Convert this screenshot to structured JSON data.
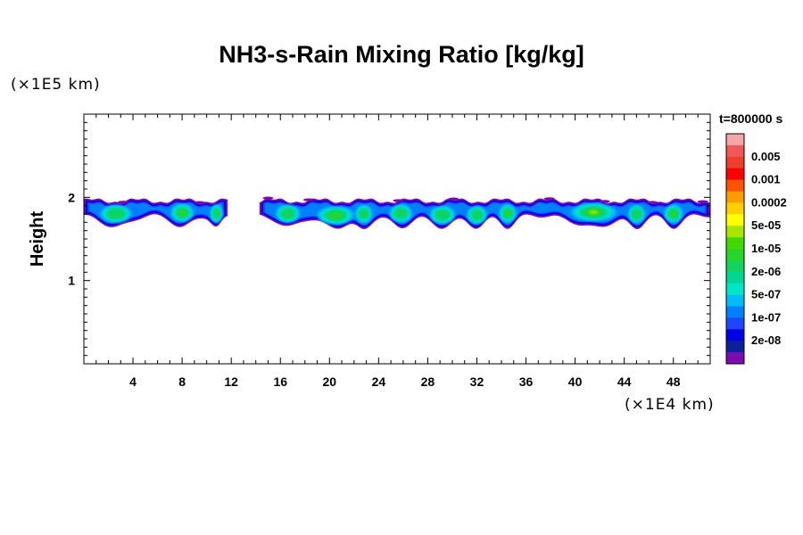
{
  "chart_data": {
    "type": "contour",
    "title": "NH3-s-Rain Mixing Ratio [kg/kg]",
    "ylabel": "Height",
    "y_unit": "(×1E5 km)",
    "x_unit": "(×1E4 km)",
    "time": "t=800000 s",
    "xlim": [
      0,
      51
    ],
    "ylim": [
      0,
      3
    ],
    "x_ticks": [
      {
        "value": 4,
        "label": "4"
      },
      {
        "value": 8,
        "label": "8"
      },
      {
        "value": 12,
        "label": "12"
      },
      {
        "value": 16,
        "label": "16"
      },
      {
        "value": 20,
        "label": "20"
      },
      {
        "value": 24,
        "label": "24"
      },
      {
        "value": 28,
        "label": "28"
      },
      {
        "value": 32,
        "label": "32"
      },
      {
        "value": 36,
        "label": "36"
      },
      {
        "value": 40,
        "label": "40"
      },
      {
        "value": 44,
        "label": "44"
      },
      {
        "value": 48,
        "label": "48"
      }
    ],
    "y_ticks": [
      {
        "value": 1,
        "label": "1"
      },
      {
        "value": 2,
        "label": "2"
      }
    ],
    "colorbar": [
      {
        "color": "#f7a6a6",
        "label": ""
      },
      {
        "color": "#f0585a",
        "label": "0.005"
      },
      {
        "color": "#ee3e2c",
        "label": ""
      },
      {
        "color": "#ff0000",
        "label": "0.001"
      },
      {
        "color": "#ff5200",
        "label": ""
      },
      {
        "color": "#ff9c00",
        "label": "0.0002"
      },
      {
        "color": "#ffd000",
        "label": ""
      },
      {
        "color": "#ffff00",
        "label": "5e-05"
      },
      {
        "color": "#a6e600",
        "label": ""
      },
      {
        "color": "#43d800",
        "label": "1e-05"
      },
      {
        "color": "#28d62a",
        "label": ""
      },
      {
        "color": "#11d35e",
        "label": "2e-06"
      },
      {
        "color": "#00d696",
        "label": ""
      },
      {
        "color": "#00e6c8",
        "label": "5e-07"
      },
      {
        "color": "#00bcff",
        "label": ""
      },
      {
        "color": "#0080ff",
        "label": "1e-07"
      },
      {
        "color": "#1e46ff",
        "label": ""
      },
      {
        "color": "#0000e8",
        "label": "2e-08"
      },
      {
        "color": "#0b2099",
        "label": ""
      },
      {
        "color": "#7c0ab0",
        "label": ""
      }
    ],
    "layer": {
      "base_height": 1.68,
      "top_height": 1.99,
      "gaps": [
        [
          11.7,
          14.3
        ]
      ],
      "cells": [
        {
          "x": 2.6,
          "width": 2.2,
          "level": 12
        },
        {
          "x": 8.0,
          "width": 1.6,
          "level": 11
        },
        {
          "x": 10.8,
          "width": 0.9,
          "level": 14
        },
        {
          "x": 16.6,
          "width": 1.7,
          "level": 12
        },
        {
          "x": 20.5,
          "width": 2.6,
          "level": 11
        },
        {
          "x": 22.8,
          "width": 1.2,
          "level": 13
        },
        {
          "x": 25.8,
          "width": 1.6,
          "level": 12
        },
        {
          "x": 29.2,
          "width": 1.8,
          "level": 12
        },
        {
          "x": 32.0,
          "width": 1.4,
          "level": 12
        },
        {
          "x": 34.5,
          "width": 1.2,
          "level": 11
        },
        {
          "x": 41.5,
          "width": 3.2,
          "level": 9
        },
        {
          "x": 45.0,
          "width": 1.2,
          "level": 12
        },
        {
          "x": 48.0,
          "width": 1.3,
          "level": 11
        }
      ]
    }
  }
}
